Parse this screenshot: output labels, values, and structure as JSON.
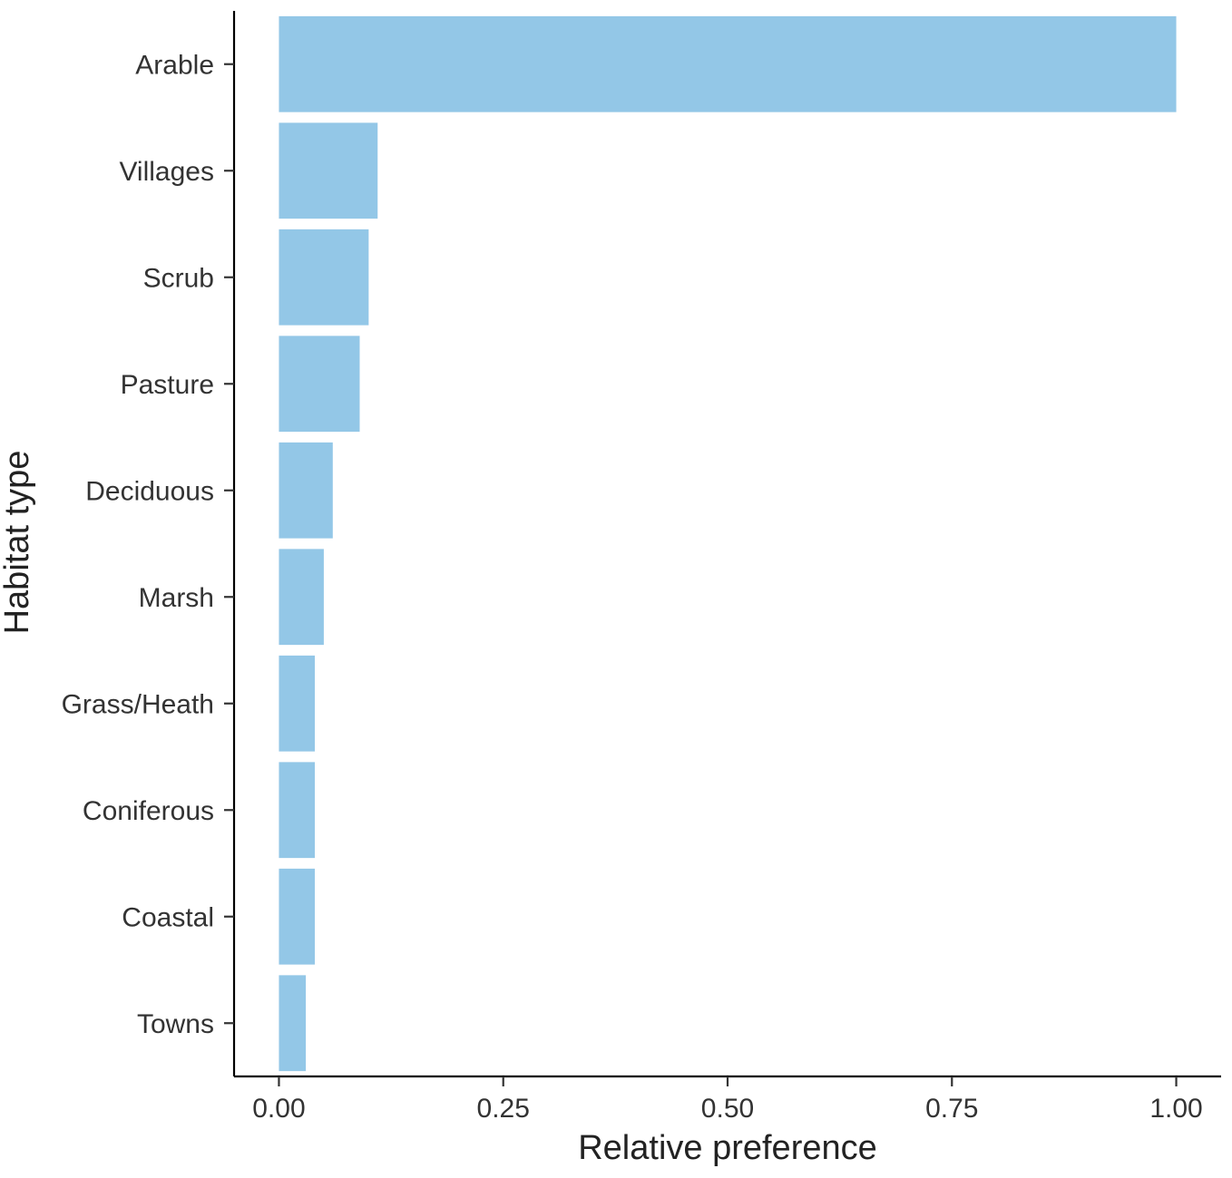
{
  "chart_data": {
    "type": "bar",
    "orientation": "horizontal",
    "categories": [
      "Arable",
      "Villages",
      "Scrub",
      "Pasture",
      "Deciduous",
      "Marsh",
      "Grass/Heath",
      "Coniferous",
      "Coastal",
      "Towns"
    ],
    "values": [
      1.0,
      0.11,
      0.1,
      0.09,
      0.06,
      0.05,
      0.04,
      0.04,
      0.04,
      0.03
    ],
    "xlabel": "Relative preference",
    "ylabel": "Habitat type",
    "xlim": [
      -0.05,
      1.05
    ],
    "xticks": [
      0,
      0.25,
      0.5,
      0.75,
      1.0
    ],
    "xtick_labels": [
      "0.00",
      "0.25",
      "0.50",
      "0.75",
      "1.00"
    ],
    "grid": false,
    "bar_color": "#93C7E7"
  }
}
